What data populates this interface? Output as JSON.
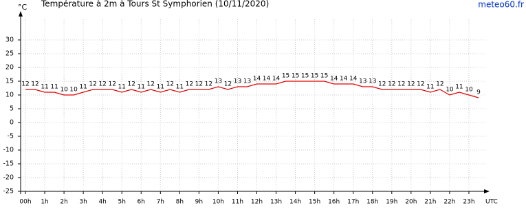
{
  "chart_data": {
    "type": "line",
    "title": "Température à 2m à Tours St Symphorien (10/11/2020)",
    "source": "meteo60.fr",
    "y_label": "°C",
    "x_label": "UTC",
    "x": [
      0,
      0.5,
      1,
      1.5,
      2,
      2.5,
      3,
      3.5,
      4,
      4.5,
      5,
      5.5,
      6,
      6.5,
      7,
      7.5,
      8,
      8.5,
      9,
      9.5,
      10,
      10.5,
      11,
      11.5,
      12,
      12.5,
      13,
      13.5,
      14,
      14.5,
      15,
      15.5,
      16,
      16.5,
      17,
      17.5,
      18,
      18.5,
      19,
      19.5,
      20,
      20.5,
      21,
      21.5,
      22,
      22.5,
      23,
      23.5
    ],
    "series": [
      {
        "name": "Température",
        "color": "#e00000",
        "values": [
          12,
          12,
          11,
          11,
          10,
          10,
          11,
          12,
          12,
          12,
          11,
          12,
          11,
          12,
          11,
          12,
          11,
          12,
          12,
          12,
          13,
          12,
          13,
          13,
          14,
          14,
          14,
          15,
          15,
          15,
          15,
          15,
          14,
          14,
          14,
          13,
          13,
          12,
          12,
          12,
          12,
          12,
          11,
          12,
          10,
          11,
          10,
          9
        ]
      }
    ],
    "xlim": [
      -0.25,
      24
    ],
    "xticks": [
      {
        "value": 0,
        "label": "00h"
      },
      {
        "value": 1,
        "label": "1h"
      },
      {
        "value": 2,
        "label": "2h"
      },
      {
        "value": 3,
        "label": "3h"
      },
      {
        "value": 4,
        "label": "4h"
      },
      {
        "value": 5,
        "label": "5h"
      },
      {
        "value": 6,
        "label": "6h"
      },
      {
        "value": 7,
        "label": "7h"
      },
      {
        "value": 8,
        "label": "8h"
      },
      {
        "value": 9,
        "label": "9h"
      },
      {
        "value": 10,
        "label": "10h"
      },
      {
        "value": 11,
        "label": "11h"
      },
      {
        "value": 12,
        "label": "12h"
      },
      {
        "value": 13,
        "label": "13h"
      },
      {
        "value": 14,
        "label": "14h"
      },
      {
        "value": 15,
        "label": "15h"
      },
      {
        "value": 16,
        "label": "16h"
      },
      {
        "value": 17,
        "label": "17h"
      },
      {
        "value": 18,
        "label": "18h"
      },
      {
        "value": 19,
        "label": "19h"
      },
      {
        "value": 20,
        "label": "20h"
      },
      {
        "value": 21,
        "label": "21h"
      },
      {
        "value": 22,
        "label": "22h"
      },
      {
        "value": 23,
        "label": "23h"
      }
    ],
    "ylim": [
      -25,
      37.5
    ],
    "yticks": [
      -25,
      -20,
      -15,
      -10,
      -5,
      0,
      5,
      10,
      15,
      20,
      25,
      30
    ],
    "grid": true
  }
}
